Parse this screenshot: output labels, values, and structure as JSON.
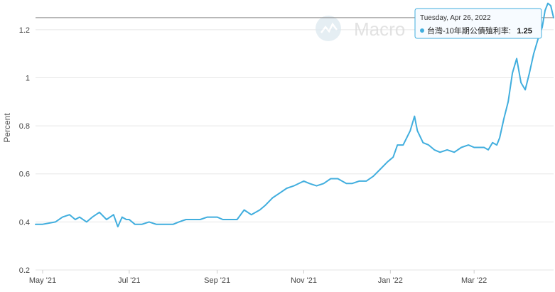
{
  "watermark": {
    "text": "Macro"
  },
  "tooltip": {
    "date": "Tuesday, Apr 26, 2022",
    "series_label": "台灣-10年期公債殖利率:",
    "value": "1.25",
    "value_num": 1.25
  },
  "colors": {
    "series": "#41aede",
    "grid": "#e6e6e6",
    "crosshair": "#888888"
  },
  "chart_data": {
    "type": "line",
    "ylabel": "Percent",
    "ylim": [
      0.2,
      1.3
    ],
    "yticks": [
      0.2,
      0.4,
      0.6,
      0.8,
      1,
      1.2
    ],
    "ytick_labels": [
      "0.2",
      "0.4",
      "0.6",
      "0.8",
      "1",
      "1.2"
    ],
    "xlim": [
      "2021-04-26",
      "2022-04-26"
    ],
    "xticks": [
      "2021-05-01",
      "2021-07-01",
      "2021-09-01",
      "2021-11-01",
      "2022-01-01",
      "2022-03-01"
    ],
    "xtick_labels": [
      "May '21",
      "Jul '21",
      "Sep '21",
      "Nov '21",
      "Jan '22",
      "Mar '22"
    ],
    "grid": "horizontal",
    "series": [
      {
        "x": [
          "2021-04-26",
          "2021-05-01",
          "2021-05-10",
          "2021-05-15",
          "2021-05-20",
          "2021-05-24",
          "2021-05-27",
          "2021-06-01",
          "2021-06-05",
          "2021-06-10",
          "2021-06-15",
          "2021-06-20",
          "2021-06-23",
          "2021-06-26",
          "2021-06-29",
          "2021-07-01",
          "2021-07-05",
          "2021-07-10",
          "2021-07-15",
          "2021-07-20",
          "2021-07-25",
          "2021-08-01",
          "2021-08-05",
          "2021-08-10",
          "2021-08-15",
          "2021-08-20",
          "2021-08-25",
          "2021-09-01",
          "2021-09-05",
          "2021-09-10",
          "2021-09-15",
          "2021-09-20",
          "2021-09-25",
          "2021-10-01",
          "2021-10-05",
          "2021-10-10",
          "2021-10-15",
          "2021-10-20",
          "2021-10-25",
          "2021-11-01",
          "2021-11-05",
          "2021-11-10",
          "2021-11-15",
          "2021-11-20",
          "2021-11-25",
          "2021-12-01",
          "2021-12-05",
          "2021-12-10",
          "2021-12-15",
          "2021-12-20",
          "2021-12-25",
          "2021-12-30",
          "2022-01-03",
          "2022-01-06",
          "2022-01-10",
          "2022-01-15",
          "2022-01-18",
          "2022-01-20",
          "2022-01-24",
          "2022-01-28",
          "2022-02-01",
          "2022-02-05",
          "2022-02-10",
          "2022-02-15",
          "2022-02-20",
          "2022-02-25",
          "2022-03-01",
          "2022-03-05",
          "2022-03-08",
          "2022-03-11",
          "2022-03-14",
          "2022-03-17",
          "2022-03-19",
          "2022-03-22",
          "2022-03-25",
          "2022-03-28",
          "2022-03-31",
          "2022-04-03",
          "2022-04-06",
          "2022-04-09",
          "2022-04-12",
          "2022-04-15",
          "2022-04-18",
          "2022-04-20",
          "2022-04-22",
          "2022-04-24",
          "2022-04-26"
        ],
        "y": [
          0.39,
          0.39,
          0.4,
          0.42,
          0.43,
          0.41,
          0.42,
          0.4,
          0.42,
          0.44,
          0.41,
          0.43,
          0.38,
          0.42,
          0.41,
          0.41,
          0.39,
          0.39,
          0.4,
          0.39,
          0.39,
          0.39,
          0.4,
          0.41,
          0.41,
          0.41,
          0.42,
          0.42,
          0.41,
          0.41,
          0.41,
          0.45,
          0.43,
          0.45,
          0.47,
          0.5,
          0.52,
          0.54,
          0.55,
          0.57,
          0.56,
          0.55,
          0.56,
          0.58,
          0.58,
          0.56,
          0.56,
          0.57,
          0.57,
          0.59,
          0.62,
          0.65,
          0.67,
          0.72,
          0.72,
          0.78,
          0.84,
          0.78,
          0.73,
          0.72,
          0.7,
          0.69,
          0.7,
          0.69,
          0.71,
          0.72,
          0.71,
          0.71,
          0.71,
          0.7,
          0.73,
          0.72,
          0.75,
          0.83,
          0.9,
          1.02,
          1.08,
          0.98,
          0.95,
          1.02,
          1.1,
          1.16,
          1.21,
          1.28,
          1.31,
          1.3,
          1.25
        ]
      }
    ]
  }
}
